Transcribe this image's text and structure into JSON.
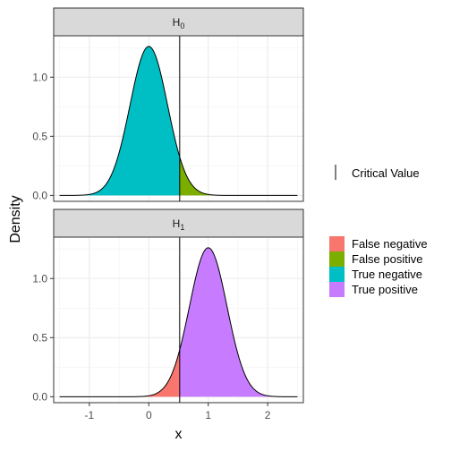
{
  "chart_data": {
    "type": "area",
    "xlabel": "x",
    "ylabel": "Density",
    "xlim": [
      -1.6,
      2.6
    ],
    "ylim": [
      -0.05,
      1.35
    ],
    "x_ticks": [
      -1,
      0,
      1,
      2
    ],
    "x_tick_labels": [
      "-1",
      "0",
      "1",
      "2"
    ],
    "y_ticks": [
      0.0,
      0.5,
      1.0
    ],
    "y_tick_labels": [
      "0.0",
      "0.5",
      "1.0"
    ],
    "grid": true,
    "critical_value": 0.52,
    "critical_value_label": "Critical Value",
    "x_range": [
      -1.5,
      2.5
    ],
    "panels": [
      {
        "name": "H0",
        "label_main": "H",
        "label_sub": "0",
        "mean": 0,
        "sd": 0.316,
        "peak_density": 1.26,
        "regions": [
          {
            "name": "True negative",
            "from": -1.5,
            "to": 0.52
          },
          {
            "name": "False positive",
            "from": 0.52,
            "to": 2.5
          }
        ]
      },
      {
        "name": "H1",
        "label_main": "H",
        "label_sub": "1",
        "mean": 1,
        "sd": 0.316,
        "peak_density": 1.26,
        "regions": [
          {
            "name": "False negative",
            "from": -1.5,
            "to": 0.52
          },
          {
            "name": "True positive",
            "from": 0.52,
            "to": 2.5
          }
        ]
      }
    ],
    "legend": {
      "position": "right",
      "items": [
        {
          "label": "False negative",
          "color": "#F8766D"
        },
        {
          "label": "False positive",
          "color": "#7CAE00"
        },
        {
          "label": "True negative",
          "color": "#00BFC4"
        },
        {
          "label": "True positive",
          "color": "#C77CFF"
        }
      ]
    }
  }
}
